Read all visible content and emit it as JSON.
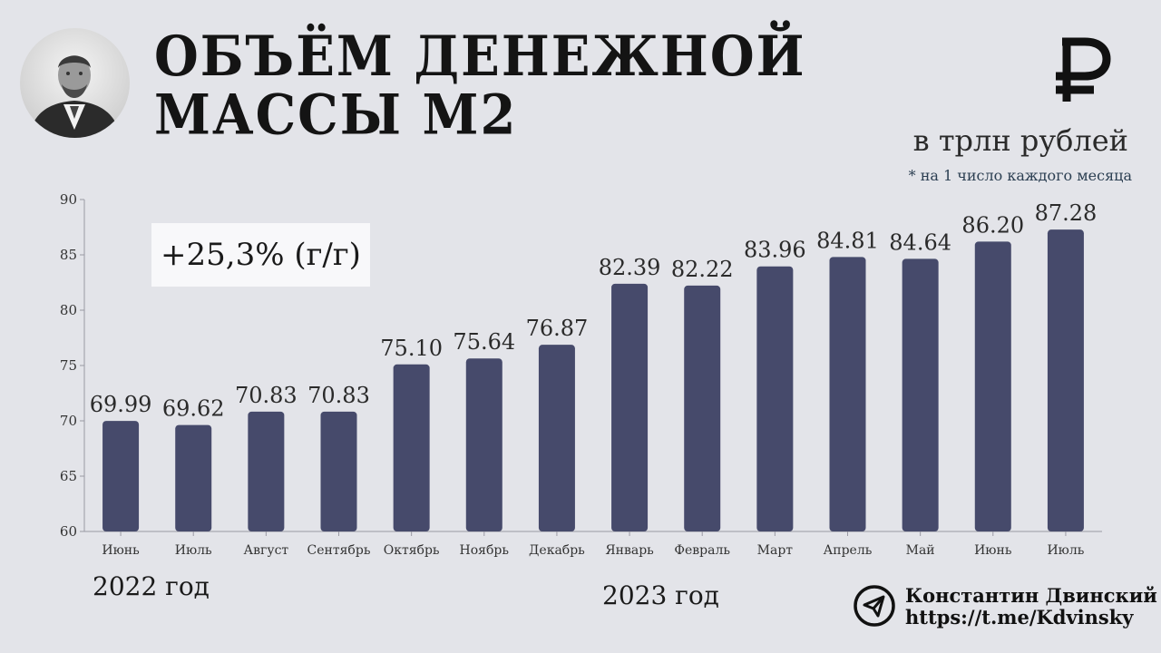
{
  "header": {
    "title_line1": "ОБЪЁМ ДЕНЕЖНОЙ",
    "title_line2": "МАССЫ М2",
    "units": "в трлн рублей",
    "note": "* на 1 число каждого месяца",
    "currency_icon": "ruble-icon"
  },
  "growth_badge": "+25,3% (г/г)",
  "years": {
    "first": "2022 год",
    "second": "2023 год"
  },
  "author": {
    "name": "Константин Двинский",
    "link": "https://t.me/Kdvinsky",
    "icon": "telegram-icon"
  },
  "colors": {
    "background": "#e3e4e9",
    "bar": "#464a6b"
  },
  "chart_data": {
    "type": "bar",
    "categories": [
      "Июнь",
      "Июль",
      "Август",
      "Сентябрь",
      "Октябрь",
      "Ноябрь",
      "Декабрь",
      "Январь",
      "Февраль",
      "Март",
      "Апрель",
      "Май",
      "Июнь",
      "Июль"
    ],
    "values": [
      69.99,
      69.62,
      70.83,
      70.83,
      75.1,
      75.64,
      76.87,
      82.39,
      82.22,
      83.96,
      84.81,
      84.64,
      86.2,
      87.28
    ],
    "value_labels": [
      "69.99",
      "69.62",
      "70.83",
      "70.83",
      "75.10",
      "75.64",
      "76.87",
      "82.39",
      "82.22",
      "83.96",
      "84.81",
      "84.64",
      "86.20",
      "87.28"
    ],
    "y_ticks": [
      60,
      65,
      70,
      75,
      80,
      85,
      90
    ],
    "ylim": [
      60,
      90
    ],
    "grid": false
  }
}
